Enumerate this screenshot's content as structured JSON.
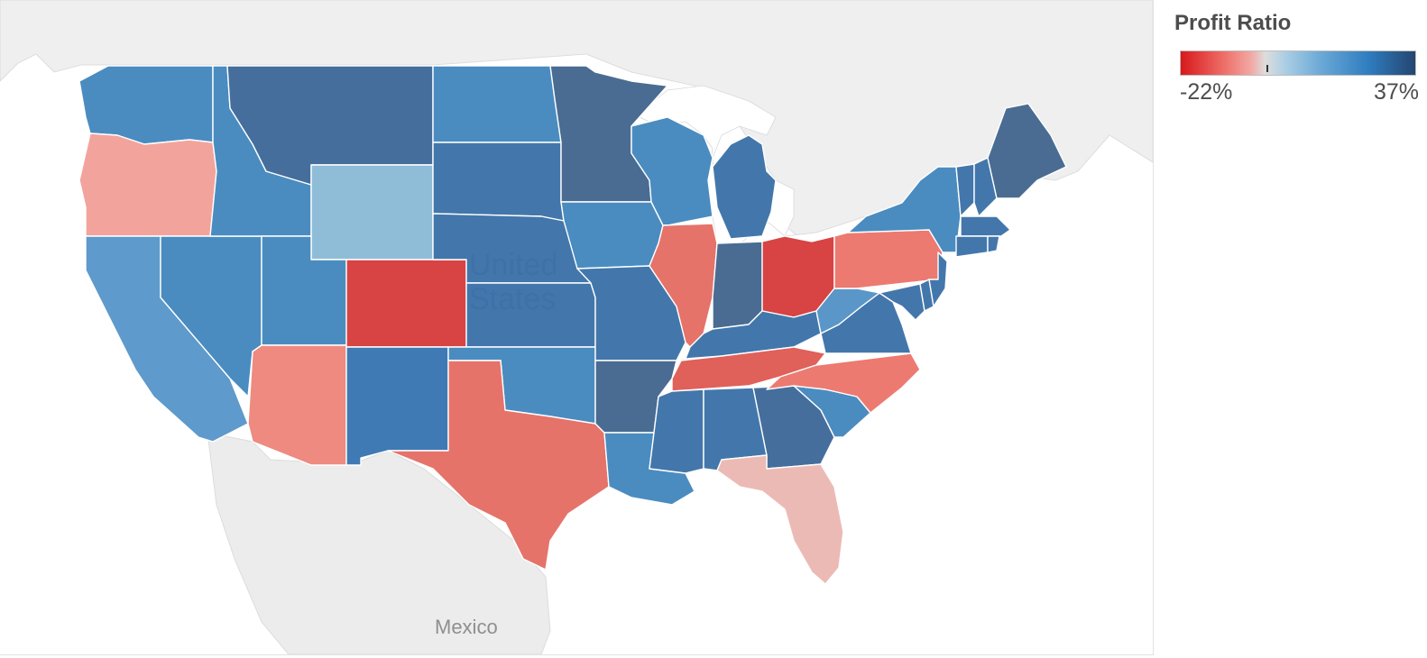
{
  "legend": {
    "title": "Profit Ratio",
    "min_label": "-22%",
    "max_label": "37%",
    "min_value": -0.22,
    "max_value": 0.37,
    "tick_value": 0.0
  },
  "map_labels": {
    "country_us": "United States",
    "country_mexico": "Mexico"
  },
  "colors": {
    "red_strong": "#d84343",
    "red": "#e5736a",
    "red_light": "#f1a39d",
    "pink": "#ecbab5",
    "blue_light": "#8fbdd8",
    "blue": "#4a8cc0",
    "blue_mid": "#3f7ab5",
    "blue_dark": "#4a6c93",
    "land": "#ececec",
    "water": "#ffffff"
  },
  "states": [
    {
      "name": "Washington",
      "color": "#4a8cc0"
    },
    {
      "name": "Oregon",
      "color": "#f2a49c"
    },
    {
      "name": "California",
      "color": "#5e9acb"
    },
    {
      "name": "Nevada",
      "color": "#4a8cc0"
    },
    {
      "name": "Idaho",
      "color": "#4a8cc0"
    },
    {
      "name": "Montana",
      "color": "#456e9c"
    },
    {
      "name": "Wyoming",
      "color": "#8fbdd8"
    },
    {
      "name": "Utah",
      "color": "#4a8cc0"
    },
    {
      "name": "Arizona",
      "color": "#ee8a80"
    },
    {
      "name": "Colorado",
      "color": "#d84343"
    },
    {
      "name": "New Mexico",
      "color": "#3f7ab5"
    },
    {
      "name": "North Dakota",
      "color": "#4a8cc0"
    },
    {
      "name": "South Dakota",
      "color": "#4377ab"
    },
    {
      "name": "Nebraska",
      "color": "#4377ab"
    },
    {
      "name": "Kansas",
      "color": "#4377ab"
    },
    {
      "name": "Oklahoma",
      "color": "#4a8cc0"
    },
    {
      "name": "Texas",
      "color": "#e5736a"
    },
    {
      "name": "Minnesota",
      "color": "#4a6c93"
    },
    {
      "name": "Iowa",
      "color": "#4a8cc0"
    },
    {
      "name": "Missouri",
      "color": "#4377ab"
    },
    {
      "name": "Arkansas",
      "color": "#4a6c93"
    },
    {
      "name": "Louisiana",
      "color": "#4a8cc0"
    },
    {
      "name": "Wisconsin",
      "color": "#4a8cc0"
    },
    {
      "name": "Illinois",
      "color": "#e5736a"
    },
    {
      "name": "Michigan",
      "color": "#4377ab"
    },
    {
      "name": "Indiana",
      "color": "#4a6c93"
    },
    {
      "name": "Ohio",
      "color": "#d84343"
    },
    {
      "name": "Kentucky",
      "color": "#4377ab"
    },
    {
      "name": "Tennessee",
      "color": "#e0605a"
    },
    {
      "name": "Mississippi",
      "color": "#4377ab"
    },
    {
      "name": "Alabama",
      "color": "#4377ab"
    },
    {
      "name": "Georgia",
      "color": "#456e9c"
    },
    {
      "name": "Florida",
      "color": "#ecbab5"
    },
    {
      "name": "South Carolina",
      "color": "#4a8cc0"
    },
    {
      "name": "North Carolina",
      "color": "#ec7a70"
    },
    {
      "name": "Virginia",
      "color": "#4377ab"
    },
    {
      "name": "West Virginia",
      "color": "#5a97c8"
    },
    {
      "name": "Pennsylvania",
      "color": "#ec7a70"
    },
    {
      "name": "New York",
      "color": "#4a8cc0"
    },
    {
      "name": "Maine",
      "color": "#4a6c93"
    },
    {
      "name": "Vermont",
      "color": "#4377ab"
    },
    {
      "name": "New Hampshire",
      "color": "#4377ab"
    },
    {
      "name": "Massachusetts",
      "color": "#4377ab"
    },
    {
      "name": "Connecticut",
      "color": "#4377ab"
    },
    {
      "name": "Rhode Island",
      "color": "#4377ab"
    },
    {
      "name": "New Jersey",
      "color": "#4377ab"
    },
    {
      "name": "Delaware",
      "color": "#4377ab"
    },
    {
      "name": "Maryland",
      "color": "#4377ab"
    }
  ]
}
